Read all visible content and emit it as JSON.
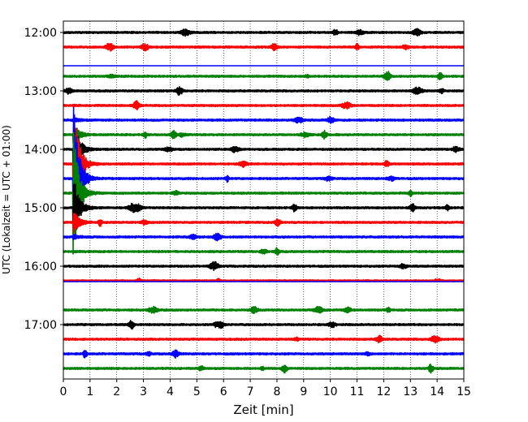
{
  "chart_data": {
    "type": "line",
    "title": "",
    "xlabel": "Zeit  [min]",
    "ylabel": "UTC (Lokalzeit = UTC + 01:00)",
    "xlim": [
      0,
      15
    ],
    "x_ticks": [
      "0",
      "1",
      "2",
      "3",
      "4",
      "5",
      "6",
      "7",
      "8",
      "9",
      "10",
      "11",
      "12",
      "13",
      "14",
      "15"
    ],
    "y_ticks": [
      "12:00",
      "13:00",
      "14:00",
      "15:00",
      "16:00",
      "17:00"
    ],
    "vertical_grid": "dotted",
    "trace_interval_min": 15,
    "color_cycle": [
      "#000000",
      "#ff0000",
      "#0000ff",
      "#008000"
    ],
    "traces": [
      {
        "start": "12:00"
      },
      {
        "start": "12:15"
      },
      {
        "start": "12:30"
      },
      {
        "start": "12:45"
      },
      {
        "start": "13:00"
      },
      {
        "start": "13:15"
      },
      {
        "start": "13:30"
      },
      {
        "start": "13:45"
      },
      {
        "start": "14:00"
      },
      {
        "start": "14:15"
      },
      {
        "start": "14:30"
      },
      {
        "start": "14:45"
      },
      {
        "start": "15:00"
      },
      {
        "start": "15:15"
      },
      {
        "start": "15:30"
      },
      {
        "start": "15:45"
      },
      {
        "start": "16:00"
      },
      {
        "start": "16:15"
      },
      {
        "start": "16:30"
      },
      {
        "start": "16:45"
      },
      {
        "start": "17:00"
      },
      {
        "start": "17:15"
      },
      {
        "start": "17:30"
      },
      {
        "start": "17:45"
      }
    ],
    "event": {
      "time_min": 0.4,
      "description": "large-amplitude seismic arrival near 14:30"
    }
  }
}
